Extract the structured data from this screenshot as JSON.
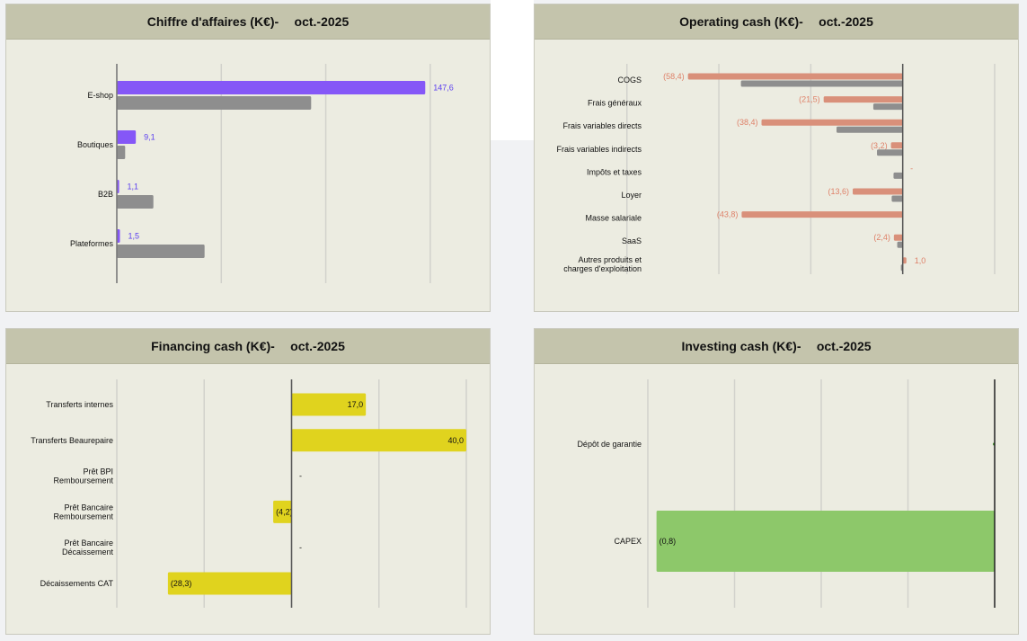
{
  "chart_data": [
    {
      "type": "bar",
      "orientation": "horizontal",
      "title": "Chiffre d'affaires (K€)",
      "period": "oct.-2025",
      "categories": [
        "E-shop",
        "Boutiques",
        "B2B",
        "Plateformes"
      ],
      "series": [
        {
          "values": [
            147.6,
            9.1,
            1.1,
            1.5
          ],
          "labels": [
            "147,6",
            "9,1",
            "1,1",
            "1,5"
          ],
          "color": "#8557f7",
          "label_color": "#5a3df0"
        },
        {
          "values": [
            93,
            4,
            17.5,
            42
          ],
          "color": "#8e8e8e"
        }
      ],
      "xlim": [
        0,
        175
      ],
      "gridlines": [
        0,
        50,
        100,
        150
      ],
      "grid": true
    },
    {
      "type": "bar",
      "orientation": "horizontal",
      "title": "Operating cash (K€)",
      "period": "oct.-2025",
      "categories": [
        "COGS",
        "Frais généraux",
        "Frais variables directs",
        "Frais variables indirects",
        "Impôts et taxes",
        "Loyer",
        "Masse salariale",
        "SaaS",
        "Autres produits et charges d'exploitation"
      ],
      "series": [
        {
          "values": [
            -58.4,
            -21.5,
            -38.4,
            -3.2,
            0.0,
            -13.6,
            -43.8,
            -2.4,
            1.0
          ],
          "labels": [
            "(58,4)",
            "(21,5)",
            "(38,4)",
            "(3,2)",
            "-",
            "(13,6)",
            "(43,8)",
            "(2,4)",
            "1,0"
          ],
          "color": "#d9907a",
          "label_color": "#de8068"
        },
        {
          "values": [
            -44,
            -8,
            -18,
            -7,
            -2.5,
            -3,
            0,
            -1.5,
            -0.5
          ],
          "color": "#8e8e8e"
        }
      ],
      "xlim": [
        -72,
        25
      ],
      "gridlines": [
        -75,
        -50,
        -25,
        0,
        25
      ],
      "grid": true
    },
    {
      "type": "bar",
      "orientation": "horizontal",
      "title": "Financing cash (K€)",
      "period": "oct.-2025",
      "categories": [
        "Transferts internes",
        "Transferts Beaurepaire",
        "Prêt BPI Remboursement",
        "Prêt Bancaire Remboursement",
        "Prêt Bancaire Décaissement",
        "Décaissements CAT"
      ],
      "series": [
        {
          "values": [
            17.0,
            40.0,
            0.0,
            -4.2,
            0.0,
            -28.3
          ],
          "labels": [
            "17,0",
            "40,0",
            "-",
            "(4,2)",
            "-",
            "(28,3)"
          ],
          "color": "#e0d31e",
          "label_color": "#111111"
        }
      ],
      "xlim": [
        -40,
        40
      ],
      "gridlines": [
        -40,
        -20,
        0,
        20,
        40
      ],
      "grid": true
    },
    {
      "type": "bar",
      "orientation": "horizontal",
      "title": "Investing cash (K€)",
      "period": "oct.-2025",
      "categories": [
        "Dépôt de garantie",
        "CAPEX"
      ],
      "series": [
        {
          "values": [
            -0.004,
            -0.78
          ],
          "labels": [
            "",
            "(0,8)"
          ],
          "color": "#8dc86a",
          "label_color": "#111111",
          "small_color": "#3c8c28"
        }
      ],
      "xlim": [
        -0.8,
        0
      ],
      "gridlines": [
        -0.8,
        -0.6,
        -0.4,
        -0.2
      ],
      "grid": true
    }
  ]
}
